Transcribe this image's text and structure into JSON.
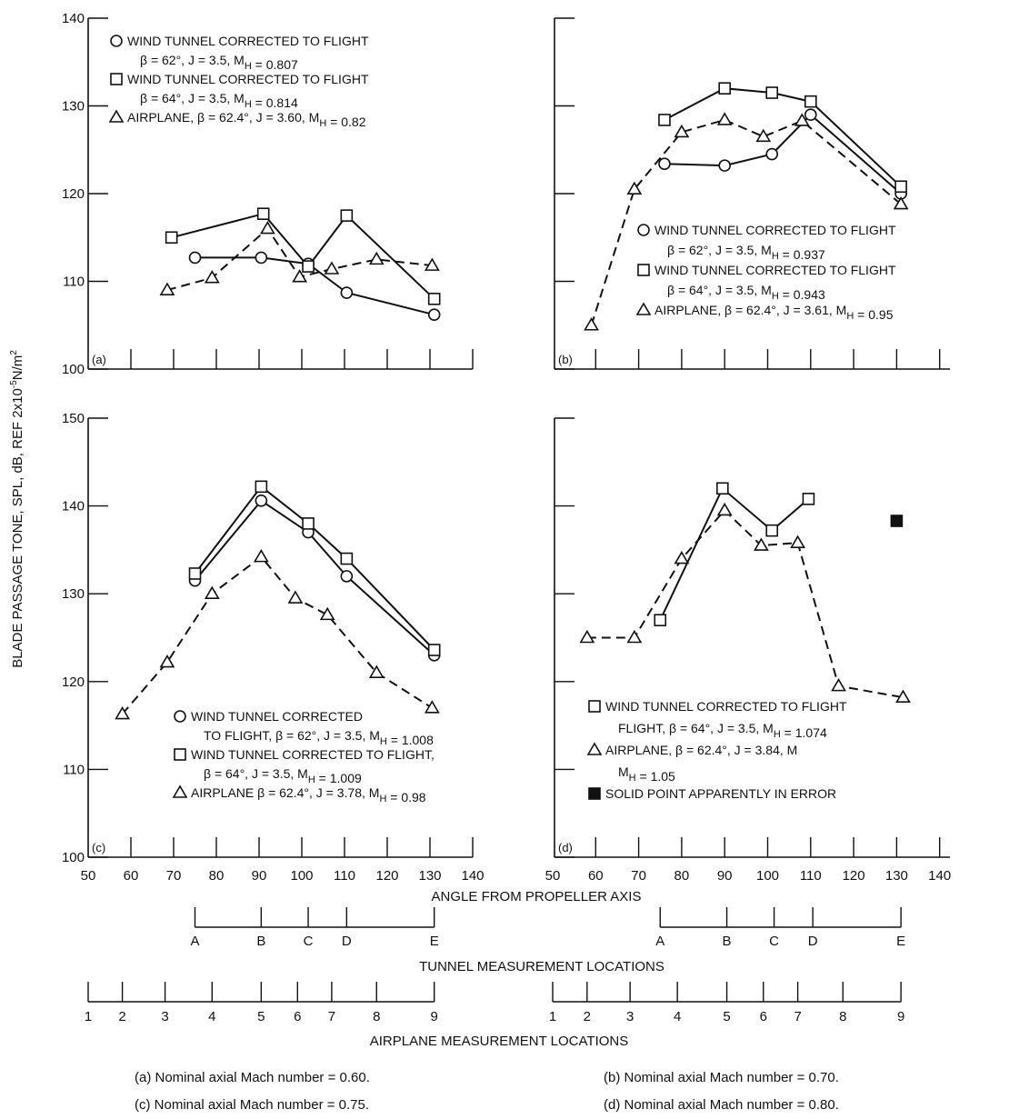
{
  "figure": {
    "ylabel": "BLADE PASSAGE TONE, SPL, dB, REF 2x10-5 N/m2",
    "ylabel_main": "BLADE PASSAGE TONE, SPL, dB,  REF 2x10",
    "ylabel_sup": "-5",
    "ylabel_unit": "N/m",
    "ylabel_sup2": "2",
    "xlabel": "ANGLE FROM PROPELLER AXIS",
    "tunnel_title": "TUNNEL MEASUREMENT LOCATIONS",
    "airplane_title": "AIRPLANE MEASUREMENT LOCATIONS"
  },
  "chart_data": [
    {
      "type": "line",
      "panel": "(a)",
      "caption": "(a) Nominal axial Mach number = 0.60.",
      "xlim": [
        50,
        140
      ],
      "ylim": [
        100,
        140
      ],
      "yticks": [
        "100",
        "110",
        "120",
        "130",
        "140"
      ],
      "legend": [
        {
          "marker": "circle",
          "lines": [
            "WIND TUNNEL CORRECTED TO FLIGHT",
            "β = 62°, J = 3.5, MH = 0.807"
          ]
        },
        {
          "marker": "square",
          "lines": [
            "WIND TUNNEL CORRECTED TO FLIGHT",
            "β = 64°, J = 3.5, MH = 0.814"
          ]
        },
        {
          "marker": "triangle",
          "lines": [
            "AIRPLANE, β = 62.4°, J = 3.60, MH = 0.82"
          ]
        }
      ],
      "series": [
        {
          "marker": "circle",
          "dash": false,
          "points": [
            [
              75,
              112.7
            ],
            [
              90.5,
              112.7
            ],
            [
              101.5,
              112
            ],
            [
              110.5,
              108.7
            ],
            [
              131,
              106.2
            ]
          ]
        },
        {
          "marker": "square",
          "dash": false,
          "points": [
            [
              69.5,
              115
            ],
            [
              91,
              117.7
            ],
            [
              101.5,
              111.7
            ],
            [
              110.5,
              117.5
            ],
            [
              131,
              108
            ]
          ]
        },
        {
          "marker": "triangle",
          "dash": true,
          "points": [
            [
              68.5,
              109
            ],
            [
              79,
              110.4
            ],
            [
              92,
              116
            ],
            [
              99.5,
              110.5
            ],
            [
              107,
              111.4
            ],
            [
              117.5,
              112.5
            ],
            [
              130.5,
              111.8
            ]
          ]
        }
      ]
    },
    {
      "type": "line",
      "panel": "(b)",
      "caption": "(b) Nominal axial Mach number = 0.70.",
      "xlim": [
        50,
        140
      ],
      "ylim": [
        100,
        140
      ],
      "yticks": [
        "100",
        "110",
        "120",
        "130",
        "140"
      ],
      "legend": [
        {
          "marker": "circle",
          "lines": [
            "WIND TUNNEL CORRECTED TO FLIGHT",
            "β = 62°, J = 3.5, MH = 0.937"
          ]
        },
        {
          "marker": "square",
          "lines": [
            "WIND TUNNEL CORRECTED TO FLIGHT",
            "β = 64°, J = 3.5, MH = 0.943"
          ]
        },
        {
          "marker": "triangle",
          "lines": [
            "AIRPLANE, β = 62.4°, J = 3.61, MH = 0.95"
          ]
        }
      ],
      "series": [
        {
          "marker": "circle",
          "dash": false,
          "points": [
            [
              76,
              123.4
            ],
            [
              90,
              123.2
            ],
            [
              101,
              124.5
            ],
            [
              110,
              129
            ],
            [
              131,
              120
            ]
          ]
        },
        {
          "marker": "square",
          "dash": false,
          "points": [
            [
              76,
              128.4
            ],
            [
              90,
              132
            ],
            [
              101,
              131.5
            ],
            [
              110,
              130.5
            ],
            [
              131,
              120.8
            ]
          ]
        },
        {
          "marker": "triangle",
          "dash": true,
          "points": [
            [
              59,
              105
            ],
            [
              69,
              120.5
            ],
            [
              80,
              127
            ],
            [
              90,
              128.4
            ],
            [
              99,
              126.5
            ],
            [
              108,
              128.3
            ],
            [
              131,
              118.8
            ]
          ]
        }
      ]
    },
    {
      "type": "line",
      "panel": "(c)",
      "caption": "(c) Nominal axial Mach number = 0.75.",
      "xlim": [
        50,
        140
      ],
      "ylim": [
        100,
        150
      ],
      "yticks": [
        "100",
        "110",
        "120",
        "130",
        "140",
        "150"
      ],
      "xticks": [
        "50",
        "60",
        "70",
        "80",
        "90",
        "100",
        "110",
        "120",
        "130",
        "140"
      ],
      "legend": [
        {
          "marker": "circle",
          "lines": [
            "WIND TUNNEL CORRECTED",
            "TO FLIGHT, β = 62°, J = 3.5, MH = 1.008"
          ]
        },
        {
          "marker": "square",
          "lines": [
            "WIND TUNNEL CORRECTED TO FLIGHT,",
            "β = 64°, J = 3.5, MH = 1.009"
          ]
        },
        {
          "marker": "triangle",
          "lines": [
            "AIRPLANE β = 62.4°, J = 3.78, MH = 0.98"
          ]
        }
      ],
      "series": [
        {
          "marker": "circle",
          "dash": false,
          "points": [
            [
              75,
              131.5
            ],
            [
              90.5,
              140.6
            ],
            [
              101.5,
              137
            ],
            [
              110.5,
              132
            ],
            [
              131,
              123
            ]
          ]
        },
        {
          "marker": "square",
          "dash": false,
          "points": [
            [
              75,
              132.3
            ],
            [
              90.5,
              142.2
            ],
            [
              101.5,
              138
            ],
            [
              110.5,
              134
            ],
            [
              131,
              123.6
            ]
          ]
        },
        {
          "marker": "triangle",
          "dash": true,
          "points": [
            [
              58,
              116.3
            ],
            [
              68.5,
              122.2
            ],
            [
              79,
              130
            ],
            [
              90.5,
              134.2
            ],
            [
              98.5,
              129.5
            ],
            [
              106,
              127.6
            ],
            [
              117.5,
              121
            ],
            [
              130.5,
              117
            ]
          ]
        }
      ]
    },
    {
      "type": "line",
      "panel": "(d)",
      "caption": "(d) Nominal axial Mach number = 0.80.",
      "xlim": [
        50,
        140
      ],
      "ylim": [
        100,
        150
      ],
      "yticks": [
        "100",
        "110",
        "120",
        "130",
        "140",
        "150"
      ],
      "xticks": [
        "50",
        "60",
        "70",
        "80",
        "90",
        "100",
        "110",
        "120",
        "130",
        "140"
      ],
      "legend": [
        {
          "marker": "square",
          "lines": [
            "WIND TUNNEL CORRECTED TO FLIGHT",
            "FLIGHT, β = 64°, J = 3.5, MH = 1.074"
          ]
        },
        {
          "marker": "triangle",
          "lines": [
            "AIRPLANE, β = 62.4°, J = 3.84, M",
            "MH = 1.05"
          ]
        },
        {
          "marker": "filled-square",
          "lines": [
            "SOLID POINT APPARENTLY IN ERROR"
          ]
        }
      ],
      "series": [
        {
          "marker": "square",
          "dash": false,
          "points": [
            [
              75,
              127
            ],
            [
              89.5,
              142
            ],
            [
              101,
              137.2
            ],
            [
              109.5,
              140.8
            ]
          ]
        },
        {
          "marker": "triangle",
          "dash": true,
          "points": [
            [
              58,
              125
            ],
            [
              69,
              125
            ],
            [
              80,
              134
            ],
            [
              90,
              139.5
            ],
            [
              98.5,
              135.5
            ],
            [
              107,
              135.8
            ],
            [
              116.5,
              119.5
            ],
            [
              131.5,
              118.2
            ]
          ]
        },
        {
          "marker": "filled-square",
          "dash": false,
          "points": [
            [
              130,
              138.3
            ]
          ]
        }
      ]
    }
  ],
  "locations": {
    "tunnel": [
      {
        "label": "A",
        "angle": 75
      },
      {
        "label": "B",
        "angle": 90.5
      },
      {
        "label": "C",
        "angle": 101.5
      },
      {
        "label": "D",
        "angle": 110.5
      },
      {
        "label": "E",
        "angle": 131
      }
    ],
    "airplane": [
      {
        "label": "1",
        "angle": 50
      },
      {
        "label": "2",
        "angle": 58
      },
      {
        "label": "3",
        "angle": 68
      },
      {
        "label": "4",
        "angle": 79
      },
      {
        "label": "5",
        "angle": 90.5
      },
      {
        "label": "6",
        "angle": 99
      },
      {
        "label": "7",
        "angle": 107
      },
      {
        "label": "8",
        "angle": 117.5
      },
      {
        "label": "9",
        "angle": 131
      }
    ]
  }
}
